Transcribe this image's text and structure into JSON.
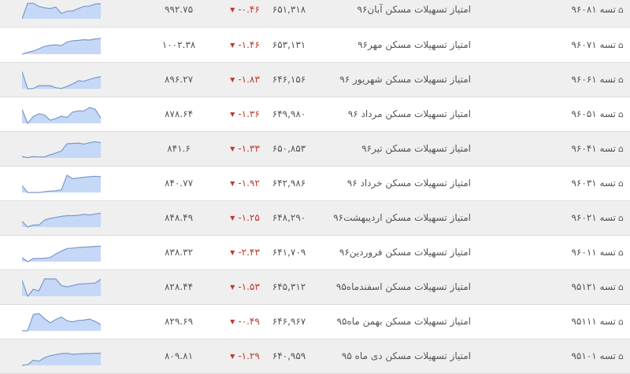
{
  "colors": {
    "spark_fill": "#c6d8f7",
    "spark_line": "#7c99c9",
    "negative": "#c0392b",
    "row_alt": "#efefef"
  },
  "icons": {
    "row_icon": "home-icon",
    "change_icon": "triangle-down-icon"
  },
  "rows": [
    {
      "id": "تسه ۹۶۰۸۱",
      "name": "امتیاز تسهیلات مسکن آبان۹۶",
      "price": "۶۵۱,۳۱۸",
      "change": "-۰.۴۶",
      "last": "۹۹۲.۷۵",
      "trend": [
        0,
        90,
        90,
        72,
        64,
        60,
        68,
        32,
        44,
        46,
        60,
        72,
        74,
        86,
        88
      ]
    },
    {
      "id": "تسه ۹۶۰۷۱",
      "name": "امتیاز تسهیلات مسکن مهر۹۶",
      "price": "۶۵۳,۱۳۱",
      "change": "-۱.۴۶",
      "last": "۱۰۰۲.۳۸",
      "trend": [
        0,
        12,
        18,
        32,
        46,
        52,
        54,
        50,
        70,
        78,
        80,
        84,
        82,
        88,
        92
      ]
    },
    {
      "id": "تسه ۹۶۰۶۱",
      "name": "امتیاز تسهیلات مسکن شهریور ۹۶",
      "price": "۶۴۶,۱۵۶",
      "change": "-۱.۸۳",
      "last": "۸۹۶.۲۷",
      "trend": [
        100,
        0,
        2,
        18,
        18,
        18,
        6,
        2,
        14,
        28,
        46,
        44,
        54,
        64,
        70
      ]
    },
    {
      "id": "تسه ۹۶۰۵۱",
      "name": "امتیاز تسهیلات مسکن مرداد ۹۶",
      "price": "۶۴۹,۹۸۰",
      "change": "-۱.۳۶",
      "last": "۸۷۸.۶۴",
      "trend": [
        80,
        0,
        40,
        56,
        48,
        18,
        28,
        42,
        34,
        66,
        72,
        72,
        92,
        82,
        30
      ]
    },
    {
      "id": "تسه ۹۶۰۴۱",
      "name": "امتیاز تسهیلات مسکن تیر۹۶",
      "price": "۶۵۰,۸۵۳",
      "change": "-۱.۳۳",
      "last": "۸۴۱.۶",
      "trend": [
        8,
        2,
        8,
        6,
        6,
        18,
        28,
        40,
        82,
        84,
        86,
        80,
        88,
        94,
        88
      ]
    },
    {
      "id": "تسه ۹۶۰۳۱",
      "name": "امتیاز تسهیلات مسکن خرداد ۹۶",
      "price": "۶۴۲,۹۸۶",
      "change": "-۱.۹۲",
      "last": "۸۴۰.۷۷",
      "trend": [
        40,
        0,
        0,
        0,
        4,
        8,
        10,
        16,
        100,
        80,
        84,
        88,
        92,
        94,
        92
      ]
    },
    {
      "id": "تسه ۹۶۰۲۱",
      "name": "امتیاز تسهیلات مسکن اردیبهشت۹۶",
      "price": "۶۴۸,۲۹۰",
      "change": "-۱.۲۵",
      "last": "۸۴۸.۴۹",
      "trend": [
        34,
        0,
        12,
        12,
        40,
        50,
        56,
        62,
        66,
        66,
        68,
        74,
        70,
        76,
        80
      ]
    },
    {
      "id": "تسه ۹۶۰۱۱",
      "name": "امتیاز تسهیلات مسکن فروردین۹۶",
      "price": "۶۴۱,۷۰۹",
      "change": "-۲.۴۳",
      "last": "۸۳۸.۳۲",
      "trend": [
        24,
        0,
        18,
        18,
        20,
        24,
        44,
        62,
        76,
        78,
        82,
        84,
        86,
        88,
        90
      ]
    },
    {
      "id": "تسه ۹۵۱۲۱",
      "name": "امتیاز تسهیلات مسکن اسفندماه۹۵",
      "price": "۶۴۵,۳۱۲",
      "change": "-۱.۵۳",
      "last": "۸۲۸.۴۴",
      "trend": [
        92,
        0,
        40,
        32,
        100,
        100,
        100,
        62,
        54,
        62,
        70,
        72,
        74,
        76,
        98
      ]
    },
    {
      "id": "تسه ۹۵۱۱۱",
      "name": "امتیاز تسهیلات مسکن بهمن ماه۹۵",
      "price": "۶۴۶,۹۶۷",
      "change": "-۰.۴۹",
      "last": "۸۲۹.۶۹",
      "trend": [
        0,
        0,
        94,
        100,
        70,
        46,
        66,
        80,
        58,
        52,
        60,
        62,
        68,
        54,
        36
      ]
    },
    {
      "id": "تسه ۹۵۱۰۱",
      "name": "امتیاز تسهیلات مسکن دی ماه ۹۵",
      "price": "۶۴۰,۹۵۹",
      "change": "-۱.۲۹",
      "last": "۸۰۹.۸۱",
      "trend": [
        0,
        4,
        30,
        24,
        44,
        56,
        62,
        68,
        70,
        64,
        66,
        68,
        68,
        70,
        70
      ]
    }
  ]
}
